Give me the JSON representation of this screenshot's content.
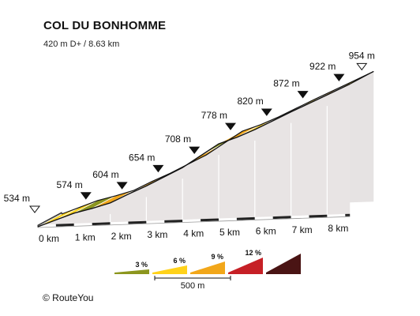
{
  "title": "COL DU BONHOMME",
  "subtitle": "420 m D+ / 8.63 km",
  "credit": "© RouteYou",
  "chart_data": {
    "type": "area",
    "title": "COL DU BONHOMME",
    "subtitle": "420 m D+ / 8.63 km",
    "unit_distance": "km",
    "unit_elevation": "m",
    "total_distance_km": 8.63,
    "x_ticks": [
      "0 km",
      "1 km",
      "2 km",
      "3 km",
      "4 km",
      "5 km",
      "6 km",
      "7 km",
      "8 km"
    ],
    "elevation_labels": [
      {
        "km": 0,
        "text": "534 m",
        "start": true
      },
      {
        "km": 1,
        "text": "574 m"
      },
      {
        "km": 2,
        "text": "604 m"
      },
      {
        "km": 3,
        "text": "654 m"
      },
      {
        "km": 4,
        "text": "708 m"
      },
      {
        "km": 5,
        "text": "778 m"
      },
      {
        "km": 6,
        "text": "820 m"
      },
      {
        "km": 7,
        "text": "872 m"
      },
      {
        "km": 8,
        "text": "922 m"
      },
      {
        "km": 8.63,
        "text": "954 m",
        "end": true
      }
    ],
    "profile": [
      {
        "km": 0,
        "elev": 534
      },
      {
        "km": 0.5,
        "elev": 554
      },
      {
        "km": 1,
        "elev": 574
      },
      {
        "km": 1.5,
        "elev": 588
      },
      {
        "km": 2,
        "elev": 604
      },
      {
        "km": 2.5,
        "elev": 630
      },
      {
        "km": 3,
        "elev": 654
      },
      {
        "km": 3.5,
        "elev": 681
      },
      {
        "km": 4,
        "elev": 708
      },
      {
        "km": 4.5,
        "elev": 743
      },
      {
        "km": 5,
        "elev": 778
      },
      {
        "km": 5.5,
        "elev": 797
      },
      {
        "km": 6,
        "elev": 820
      },
      {
        "km": 6.5,
        "elev": 846
      },
      {
        "km": 7,
        "elev": 872
      },
      {
        "km": 7.5,
        "elev": 897
      },
      {
        "km": 8,
        "elev": 922
      },
      {
        "km": 8.63,
        "elev": 954
      }
    ],
    "segment_colors": [
      "#ffd21a",
      "#ffd21a",
      "#8c961e",
      "#f2a71a",
      "#ffd21a",
      "#f2a71a",
      "#ffd21a",
      "#f2a71a",
      "#f2a71a",
      "#8c961e",
      "#f2a71a",
      "#ffd21a",
      "#ffd21a",
      "#f2a71a",
      "#ffd21a",
      "#f2a71a",
      "#ffd21a"
    ],
    "legend": {
      "items": [
        {
          "label": "3 %",
          "color": "#8c961e"
        },
        {
          "label": "6 %",
          "color": "#ffd21a"
        },
        {
          "label": "9 %",
          "color": "#f2a71a"
        },
        {
          "label": "12 %",
          "color": "#c62026"
        },
        {
          "label": "",
          "color": "#4a1414"
        }
      ],
      "scale_label": "500 m"
    }
  }
}
